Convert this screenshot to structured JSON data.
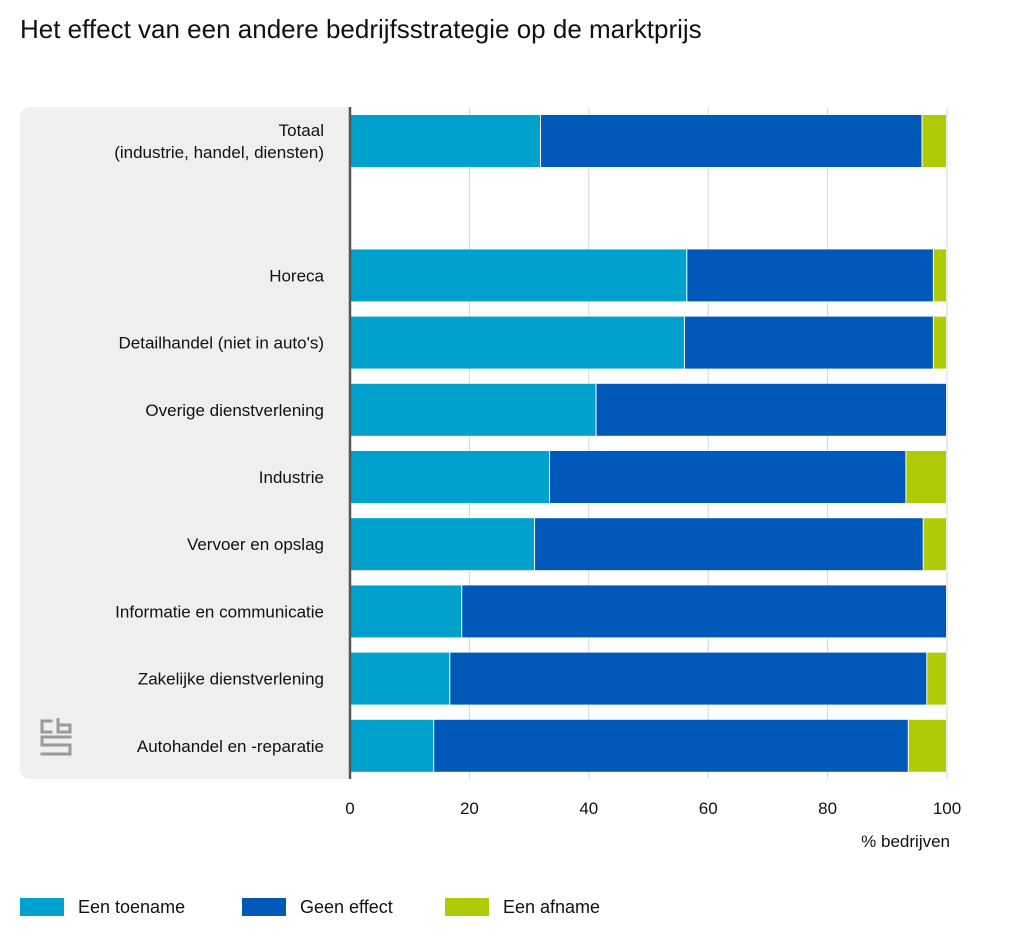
{
  "chart_data": {
    "type": "bar",
    "orientation": "horizontal",
    "stacked": true,
    "title": "Het effect van een andere bedrijfsstrategie op de marktprijs",
    "xlabel": "% bedrijven",
    "ylabel": "",
    "xlim": [
      0,
      100
    ],
    "xticks": [
      0,
      20,
      40,
      60,
      80,
      100
    ],
    "categories": [
      "Totaal\n(industrie, handel, diensten)",
      "",
      "Horeca",
      "Detailhandel (niet in auto's)",
      "Overige dienstverlening",
      "Industrie",
      "Vervoer en opslag",
      "Informatie en communicatie",
      "Zakelijke dienstverlening",
      "Autohandel en -reparatie"
    ],
    "series": [
      {
        "name": "Een toename",
        "color": "#00a1cd",
        "values": [
          32,
          null,
          56.5,
          56.1,
          41.3,
          33.5,
          31,
          18.8,
          16.8,
          14.1
        ]
      },
      {
        "name": "Geen effect",
        "color": "#0058b8",
        "values": [
          63.9,
          null,
          41.3,
          41.7,
          58.7,
          59.7,
          65.1,
          81.2,
          79.9,
          79.5
        ]
      },
      {
        "name": "Een afname",
        "color": "#afcb05",
        "values": [
          4.1,
          null,
          2.2,
          2.2,
          0,
          6.8,
          3.9,
          0,
          3.3,
          6.4
        ]
      }
    ],
    "grid": true,
    "legend_position": "bottom-left"
  },
  "legend": {
    "items": [
      {
        "label": "Een toename",
        "color": "#00a1cd"
      },
      {
        "label": "Geen effect",
        "color": "#0058b8"
      },
      {
        "label": "Een afname",
        "color": "#afcb05"
      }
    ]
  },
  "logo": {
    "name": "cbs-logo",
    "text": "cbs"
  }
}
